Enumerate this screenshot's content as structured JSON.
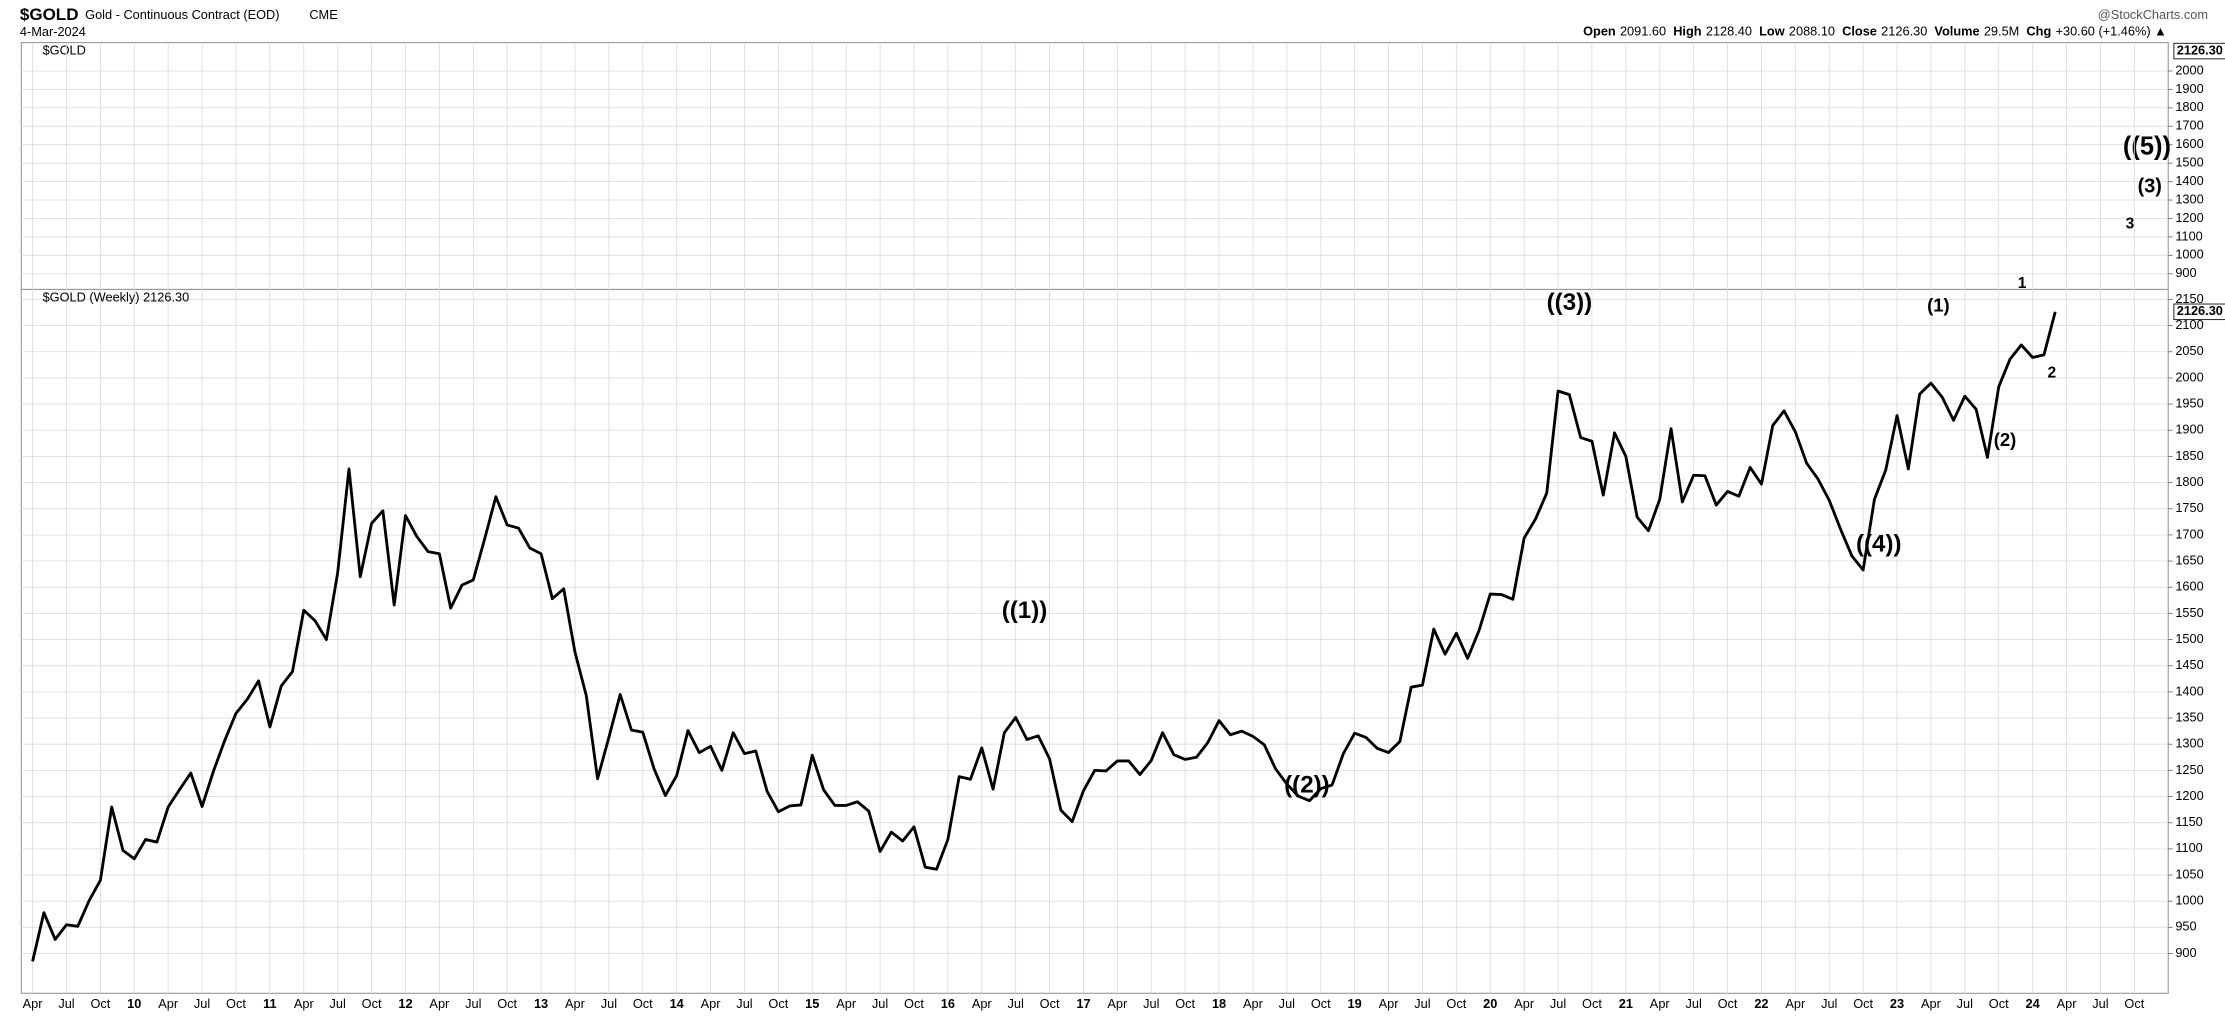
{
  "header": {
    "symbol": "$GOLD",
    "name": "Gold - Continuous Contract (EOD)",
    "exchange": "CME",
    "date": "4-Mar-2024",
    "source": "@StockCharts.com",
    "quote": [
      [
        "Open",
        "2091.60"
      ],
      [
        "High",
        "2128.40"
      ],
      [
        "Low",
        "2088.10"
      ],
      [
        "Close",
        "2126.30"
      ],
      [
        "Volume",
        "29.5M"
      ],
      [
        "Chg",
        "+30.60 (+1.46%) ▲"
      ]
    ]
  },
  "chart_data": [
    {
      "type": "panel",
      "legend": "$GOLD",
      "last_label": "2126.30",
      "ylim": [
        815,
        2154
      ],
      "yticks": [
        900,
        1000,
        1100,
        1200,
        1300,
        1400,
        1500,
        1600,
        1700,
        1800,
        1900,
        2000
      ],
      "annotations": [
        "((5))",
        "(3)",
        "3"
      ],
      "grid": true
    },
    {
      "type": "line",
      "legend": "$GOLD (Weekly) 2126.30",
      "last_label": "2126.30",
      "grid": true,
      "xlim": [
        "2009-03",
        "2025-01"
      ],
      "ylim": [
        824,
        2169
      ],
      "yticks": [
        900,
        950,
        1000,
        1050,
        1100,
        1150,
        1200,
        1250,
        1300,
        1350,
        1400,
        1450,
        1500,
        1550,
        1600,
        1650,
        1700,
        1750,
        1800,
        1850,
        1900,
        1950,
        2000,
        2050,
        2100,
        2150
      ],
      "xticks": [
        {
          "value": "2009-04",
          "label": "Apr"
        },
        {
          "value": "2009-07",
          "label": "Jul"
        },
        {
          "value": "2009-10",
          "label": "Oct"
        },
        {
          "value": "2010-01",
          "label": "10"
        },
        {
          "value": "2010-04",
          "label": "Apr"
        },
        {
          "value": "2010-07",
          "label": "Jul"
        },
        {
          "value": "2010-10",
          "label": "Oct"
        },
        {
          "value": "2011-01",
          "label": "11"
        },
        {
          "value": "2011-04",
          "label": "Apr"
        },
        {
          "value": "2011-07",
          "label": "Jul"
        },
        {
          "value": "2011-10",
          "label": "Oct"
        },
        {
          "value": "2012-01",
          "label": "12"
        },
        {
          "value": "2012-04",
          "label": "Apr"
        },
        {
          "value": "2012-07",
          "label": "Jul"
        },
        {
          "value": "2012-10",
          "label": "Oct"
        },
        {
          "value": "2013-01",
          "label": "13"
        },
        {
          "value": "2013-04",
          "label": "Apr"
        },
        {
          "value": "2013-07",
          "label": "Jul"
        },
        {
          "value": "2013-10",
          "label": "Oct"
        },
        {
          "value": "2014-01",
          "label": "14"
        },
        {
          "value": "2014-04",
          "label": "Apr"
        },
        {
          "value": "2014-07",
          "label": "Jul"
        },
        {
          "value": "2014-10",
          "label": "Oct"
        },
        {
          "value": "2015-01",
          "label": "15"
        },
        {
          "value": "2015-04",
          "label": "Apr"
        },
        {
          "value": "2015-07",
          "label": "Jul"
        },
        {
          "value": "2015-10",
          "label": "Oct"
        },
        {
          "value": "2016-01",
          "label": "16"
        },
        {
          "value": "2016-04",
          "label": "Apr"
        },
        {
          "value": "2016-07",
          "label": "Jul"
        },
        {
          "value": "2016-10",
          "label": "Oct"
        },
        {
          "value": "2017-01",
          "label": "17"
        },
        {
          "value": "2017-04",
          "label": "Apr"
        },
        {
          "value": "2017-07",
          "label": "Jul"
        },
        {
          "value": "2017-10",
          "label": "Oct"
        },
        {
          "value": "2018-01",
          "label": "18"
        },
        {
          "value": "2018-04",
          "label": "Apr"
        },
        {
          "value": "2018-07",
          "label": "Jul"
        },
        {
          "value": "2018-10",
          "label": "Oct"
        },
        {
          "value": "2019-01",
          "label": "19"
        },
        {
          "value": "2019-04",
          "label": "Apr"
        },
        {
          "value": "2019-07",
          "label": "Jul"
        },
        {
          "value": "2019-10",
          "label": "Oct"
        },
        {
          "value": "2020-01",
          "label": "20"
        },
        {
          "value": "2020-04",
          "label": "Apr"
        },
        {
          "value": "2020-07",
          "label": "Jul"
        },
        {
          "value": "2020-10",
          "label": "Oct"
        },
        {
          "value": "2021-01",
          "label": "21"
        },
        {
          "value": "2021-04",
          "label": "Apr"
        },
        {
          "value": "2021-07",
          "label": "Jul"
        },
        {
          "value": "2021-10",
          "label": "Oct"
        },
        {
          "value": "2022-01",
          "label": "22"
        },
        {
          "value": "2022-04",
          "label": "Apr"
        },
        {
          "value": "2022-07",
          "label": "Jul"
        },
        {
          "value": "2022-10",
          "label": "Oct"
        },
        {
          "value": "2023-01",
          "label": "23"
        },
        {
          "value": "2023-04",
          "label": "Apr"
        },
        {
          "value": "2023-07",
          "label": "Jul"
        },
        {
          "value": "2023-10",
          "label": "Oct"
        },
        {
          "value": "2024-01",
          "label": "24"
        },
        {
          "value": "2024-04",
          "label": "Apr"
        },
        {
          "value": "2024-07",
          "label": "Jul"
        },
        {
          "value": "2024-10",
          "label": "Oct"
        }
      ],
      "x": [
        "2009-04",
        "2009-05",
        "2009-06",
        "2009-07",
        "2009-08",
        "2009-09",
        "2009-10",
        "2009-11",
        "2009-12",
        "2010-01",
        "2010-02",
        "2010-03",
        "2010-04",
        "2010-05",
        "2010-06",
        "2010-07",
        "2010-08",
        "2010-09",
        "2010-10",
        "2010-11",
        "2010-12",
        "2011-01",
        "2011-02",
        "2011-03",
        "2011-04",
        "2011-05",
        "2011-06",
        "2011-07",
        "2011-08",
        "2011-09",
        "2011-10",
        "2011-11",
        "2011-12",
        "2012-01",
        "2012-02",
        "2012-03",
        "2012-04",
        "2012-05",
        "2012-06",
        "2012-07",
        "2012-08",
        "2012-09",
        "2012-10",
        "2012-11",
        "2012-12",
        "2013-01",
        "2013-02",
        "2013-03",
        "2013-04",
        "2013-05",
        "2013-06",
        "2013-07",
        "2013-08",
        "2013-09",
        "2013-10",
        "2013-11",
        "2013-12",
        "2014-01",
        "2014-02",
        "2014-03",
        "2014-04",
        "2014-05",
        "2014-06",
        "2014-07",
        "2014-08",
        "2014-09",
        "2014-10",
        "2014-11",
        "2014-12",
        "2015-01",
        "2015-02",
        "2015-03",
        "2015-04",
        "2015-05",
        "2015-06",
        "2015-07",
        "2015-08",
        "2015-09",
        "2015-10",
        "2015-11",
        "2015-12",
        "2016-01",
        "2016-02",
        "2016-03",
        "2016-04",
        "2016-05",
        "2016-06",
        "2016-07",
        "2016-08",
        "2016-09",
        "2016-10",
        "2016-11",
        "2016-12",
        "2017-01",
        "2017-02",
        "2017-03",
        "2017-04",
        "2017-05",
        "2017-06",
        "2017-07",
        "2017-08",
        "2017-09",
        "2017-10",
        "2017-11",
        "2017-12",
        "2018-01",
        "2018-02",
        "2018-03",
        "2018-04",
        "2018-05",
        "2018-06",
        "2018-07",
        "2018-08",
        "2018-09",
        "2018-10",
        "2018-11",
        "2018-12",
        "2019-01",
        "2019-02",
        "2019-03",
        "2019-04",
        "2019-05",
        "2019-06",
        "2019-07",
        "2019-08",
        "2019-09",
        "2019-10",
        "2019-11",
        "2019-12",
        "2020-01",
        "2020-02",
        "2020-03",
        "2020-04",
        "2020-05",
        "2020-06",
        "2020-07",
        "2020-08",
        "2020-09",
        "2020-10",
        "2020-11",
        "2020-12",
        "2021-01",
        "2021-02",
        "2021-03",
        "2021-04",
        "2021-05",
        "2021-06",
        "2021-07",
        "2021-08",
        "2021-09",
        "2021-10",
        "2021-11",
        "2021-12",
        "2022-01",
        "2022-02",
        "2022-03",
        "2022-04",
        "2022-05",
        "2022-06",
        "2022-07",
        "2022-08",
        "2022-09",
        "2022-10",
        "2022-11",
        "2022-12",
        "2023-01",
        "2023-02",
        "2023-03",
        "2023-04",
        "2023-05",
        "2023-06",
        "2023-07",
        "2023-08",
        "2023-09",
        "2023-10",
        "2023-11",
        "2023-12",
        "2024-01",
        "2024-02",
        "2024-03"
      ],
      "series": [
        {
          "name": "$GOLD",
          "color": "#000000",
          "values": [
            885,
            978,
            927,
            955,
            952,
            1001,
            1040,
            1180,
            1097,
            1081,
            1118,
            1113,
            1180,
            1213,
            1245,
            1181,
            1248,
            1307,
            1359,
            1386,
            1421,
            1333,
            1411,
            1439,
            1556,
            1536,
            1500,
            1628,
            1826,
            1620,
            1722,
            1746,
            1566,
            1737,
            1697,
            1668,
            1664,
            1560,
            1604,
            1614,
            1692,
            1773,
            1719,
            1713,
            1675,
            1664,
            1578,
            1597,
            1476,
            1393,
            1234,
            1313,
            1395,
            1327,
            1323,
            1253,
            1202,
            1240,
            1326,
            1284,
            1296,
            1250,
            1322,
            1282,
            1287,
            1210,
            1171,
            1182,
            1184,
            1279,
            1213,
            1183,
            1183,
            1190,
            1172,
            1095,
            1132,
            1115,
            1142,
            1065,
            1061,
            1118,
            1238,
            1233,
            1293,
            1214,
            1322,
            1351,
            1309,
            1316,
            1272,
            1174,
            1152,
            1211,
            1250,
            1249,
            1268,
            1268,
            1242,
            1269,
            1322,
            1280,
            1271,
            1275,
            1303,
            1345,
            1318,
            1325,
            1315,
            1299,
            1253,
            1224,
            1201,
            1192,
            1215,
            1222,
            1282,
            1321,
            1313,
            1292,
            1284,
            1305,
            1409,
            1413,
            1520,
            1472,
            1512,
            1464,
            1517,
            1587,
            1586,
            1577,
            1694,
            1730,
            1780,
            1975,
            1968,
            1886,
            1879,
            1776,
            1895,
            1850,
            1734,
            1708,
            1768,
            1903,
            1763,
            1814,
            1813,
            1757,
            1783,
            1774,
            1829,
            1797,
            1909,
            1937,
            1897,
            1837,
            1807,
            1766,
            1711,
            1660,
            1633,
            1768,
            1824,
            1928,
            1826,
            1969,
            1990,
            1963,
            1919,
            1965,
            1940,
            1848,
            1983,
            2036,
            2063,
            2039,
            2044,
            2126.3
          ]
        }
      ],
      "annotations": [
        "((1))",
        "((2))",
        "((3))",
        "((4))",
        "(1)",
        "(2)",
        "1",
        "2"
      ]
    }
  ]
}
